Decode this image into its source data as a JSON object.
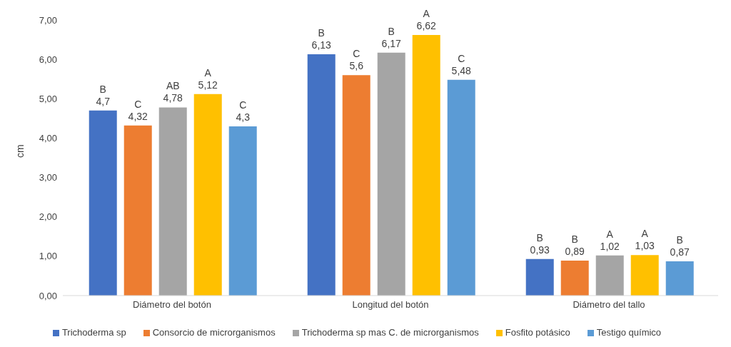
{
  "chart_data": {
    "type": "bar",
    "ylabel": "cm",
    "categories": [
      "Diámetro del botón",
      "Longitud del botón",
      "Diámetro del tallo"
    ],
    "series": [
      {
        "name": "Trichoderma sp",
        "color": "#4472c4",
        "values": [
          4.7,
          6.13,
          0.93
        ],
        "value_labels": [
          "B\n4,7",
          "B\n6,13",
          "B\n0,93"
        ]
      },
      {
        "name": "Consorcio de microrganismos",
        "color": "#ed7d31",
        "values": [
          4.32,
          5.6,
          0.89
        ],
        "value_labels": [
          "C\n4,32",
          "C\n5,6",
          "B\n0,89"
        ]
      },
      {
        "name": "Trichoderma sp mas C. de microrganismos",
        "color": "#a5a5a5",
        "values": [
          4.78,
          6.17,
          1.02
        ],
        "value_labels": [
          "AB\n4,78",
          "B\n6,17",
          "A\n1,02"
        ]
      },
      {
        "name": "Fosfito potásico",
        "color": "#ffc000",
        "values": [
          5.12,
          6.62,
          1.03
        ],
        "value_labels": [
          "A\n5,12",
          "A\n6,62",
          "A\n1,03"
        ]
      },
      {
        "name": "Testigo químico",
        "color": "#5b9bd5",
        "values": [
          4.3,
          5.48,
          0.87
        ],
        "value_labels": [
          "C\n4,3",
          "C\n5,48",
          "B\n0,87"
        ]
      }
    ],
    "ylim": [
      0,
      7
    ],
    "yticks": [
      {
        "value": 0,
        "label": "0,00"
      },
      {
        "value": 1,
        "label": "1,00"
      },
      {
        "value": 2,
        "label": "2,00"
      },
      {
        "value": 3,
        "label": "3,00"
      },
      {
        "value": 4,
        "label": "4,00"
      },
      {
        "value": 5,
        "label": "5,00"
      },
      {
        "value": 6,
        "label": "6,00"
      },
      {
        "value": 7,
        "label": "7,00"
      }
    ],
    "legend": "bottom"
  }
}
